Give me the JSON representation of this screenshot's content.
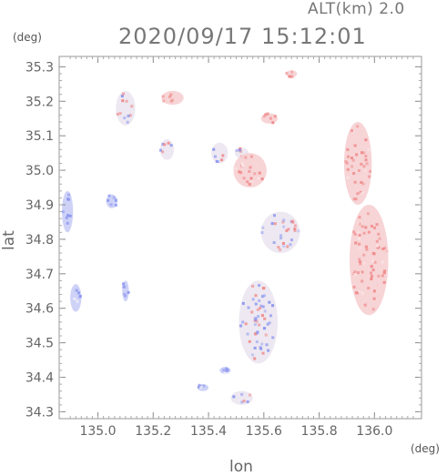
{
  "header": {
    "altitude": "ALT(km) 2.0",
    "datetime": "2020/09/17 15:12:01",
    "unit_y": "(deg)",
    "unit_x": "(deg)"
  },
  "chart_data": {
    "type": "heatmap",
    "title": "2020/09/17 15:12:01",
    "xlabel": "lon",
    "ylabel": "lat",
    "xlim": [
      134.86,
      136.17
    ],
    "ylim": [
      34.28,
      35.33
    ],
    "xticks": [
      "135.0",
      "135.2",
      "135.4",
      "135.6",
      "135.8",
      "136.0"
    ],
    "yticks": [
      "34.3",
      "34.4",
      "34.5",
      "34.6",
      "34.7",
      "34.8",
      "34.9",
      "35.0",
      "35.1",
      "35.2",
      "35.3"
    ],
    "colormap": {
      "negative": "#8c96f0",
      "neutral": "#f4f4f6",
      "positive": "#f08c8c"
    },
    "grid": false,
    "echo_regions": [
      {
        "lon": 135.1,
        "lat": 35.18,
        "rx": 0.035,
        "ry": 0.05,
        "sign": "mixed"
      },
      {
        "lon": 135.27,
        "lat": 35.21,
        "rx": 0.04,
        "ry": 0.02,
        "sign": "positive"
      },
      {
        "lon": 135.25,
        "lat": 35.06,
        "rx": 0.025,
        "ry": 0.03,
        "sign": "mixed"
      },
      {
        "lon": 135.44,
        "lat": 35.05,
        "rx": 0.03,
        "ry": 0.03,
        "sign": "mixed"
      },
      {
        "lon": 135.52,
        "lat": 35.05,
        "rx": 0.025,
        "ry": 0.015,
        "sign": "mixed"
      },
      {
        "lon": 135.55,
        "lat": 35.0,
        "rx": 0.06,
        "ry": 0.05,
        "sign": "positive"
      },
      {
        "lon": 135.62,
        "lat": 35.15,
        "rx": 0.03,
        "ry": 0.015,
        "sign": "positive"
      },
      {
        "lon": 135.7,
        "lat": 35.28,
        "rx": 0.02,
        "ry": 0.01,
        "sign": "positive"
      },
      {
        "lon": 134.89,
        "lat": 34.88,
        "rx": 0.02,
        "ry": 0.06,
        "sign": "negative"
      },
      {
        "lon": 135.05,
        "lat": 34.91,
        "rx": 0.02,
        "ry": 0.02,
        "sign": "negative"
      },
      {
        "lon": 134.92,
        "lat": 34.63,
        "rx": 0.02,
        "ry": 0.04,
        "sign": "negative"
      },
      {
        "lon": 135.1,
        "lat": 34.65,
        "rx": 0.012,
        "ry": 0.03,
        "sign": "negative"
      },
      {
        "lon": 135.58,
        "lat": 34.56,
        "rx": 0.07,
        "ry": 0.12,
        "sign": "mixed"
      },
      {
        "lon": 135.66,
        "lat": 34.82,
        "rx": 0.07,
        "ry": 0.06,
        "sign": "mixed"
      },
      {
        "lon": 135.94,
        "lat": 35.02,
        "rx": 0.05,
        "ry": 0.12,
        "sign": "positive"
      },
      {
        "lon": 135.98,
        "lat": 34.74,
        "rx": 0.07,
        "ry": 0.16,
        "sign": "positive"
      },
      {
        "lon": 135.46,
        "lat": 34.42,
        "rx": 0.02,
        "ry": 0.01,
        "sign": "negative"
      },
      {
        "lon": 135.52,
        "lat": 34.34,
        "rx": 0.04,
        "ry": 0.02,
        "sign": "mixed"
      },
      {
        "lon": 135.38,
        "lat": 34.37,
        "rx": 0.02,
        "ry": 0.01,
        "sign": "negative"
      }
    ]
  }
}
